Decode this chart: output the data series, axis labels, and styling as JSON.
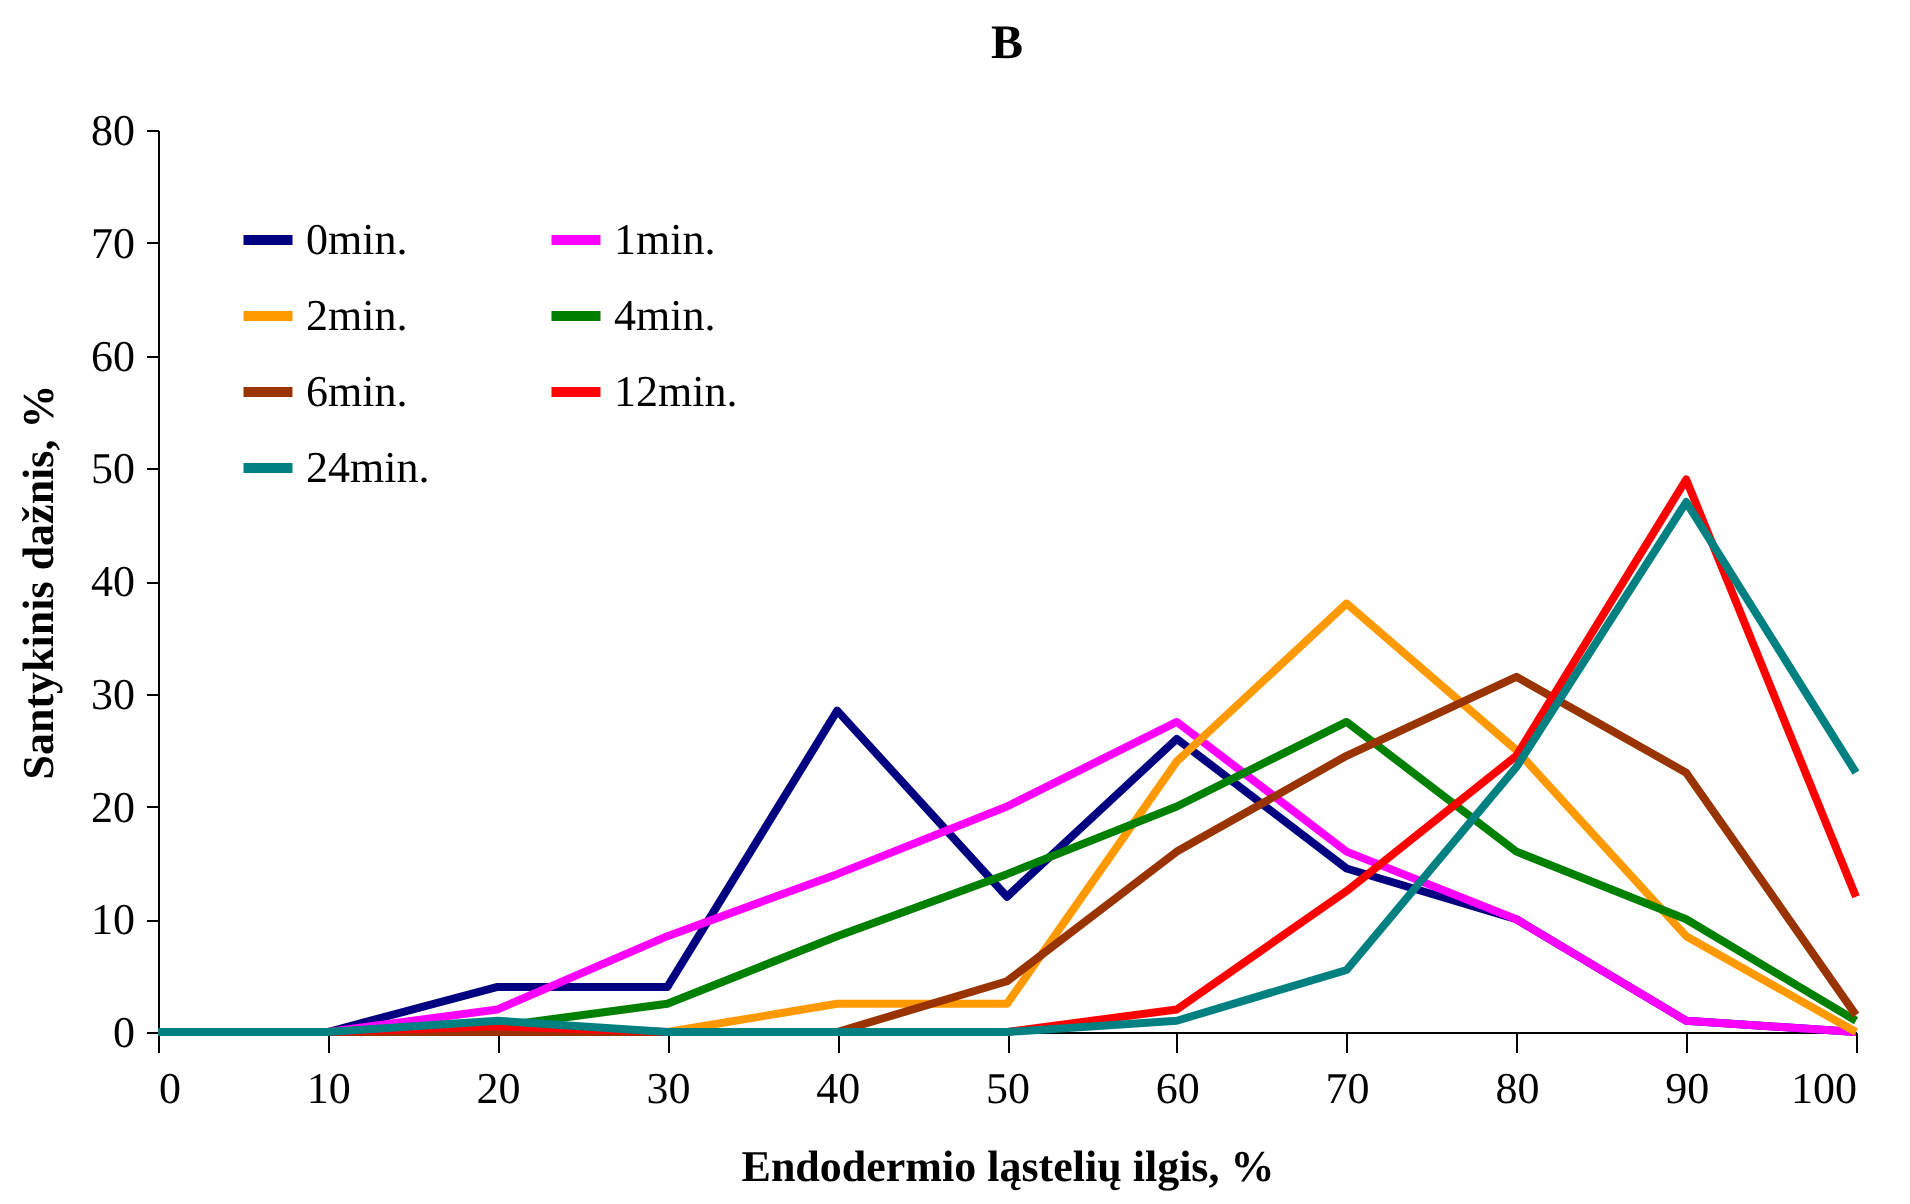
{
  "chart_data": {
    "type": "line",
    "title": "B",
    "xlabel": "Endodermio ląstelių ilgis, %",
    "ylabel": "Santykinis dažnis, %",
    "x": [
      0,
      10,
      20,
      30,
      40,
      50,
      60,
      70,
      80,
      90,
      100
    ],
    "xlim": [
      0,
      100
    ],
    "xticks": [
      0,
      10,
      20,
      30,
      40,
      50,
      60,
      70,
      80,
      90,
      100
    ],
    "ylim": [
      0,
      80
    ],
    "yticks": [
      0,
      10,
      20,
      30,
      40,
      50,
      60,
      70,
      80
    ],
    "grid": false,
    "legend": "top left",
    "marker": "none",
    "line_style": "solid",
    "series": [
      {
        "name": "0min.",
        "color": "#000080",
        "values": [
          0,
          0,
          4,
          4,
          28.5,
          12,
          26,
          14.5,
          10,
          1,
          0
        ]
      },
      {
        "name": "1min.",
        "color": "#ff00ff",
        "values": [
          0,
          0,
          2,
          8.5,
          14,
          20,
          27.5,
          16,
          10,
          1,
          0
        ]
      },
      {
        "name": "2min.",
        "color": "#ff9900",
        "values": [
          null,
          null,
          0,
          0,
          2.5,
          2.5,
          24,
          38,
          25,
          8.5,
          0
        ]
      },
      {
        "name": "4min.",
        "color": "#008000",
        "values": [
          0,
          0,
          0.5,
          2.5,
          8.5,
          14,
          20,
          27.5,
          16,
          10,
          1
        ]
      },
      {
        "name": "6min.",
        "color": "#993300",
        "values": [
          0,
          0,
          0,
          0,
          0,
          4.5,
          16,
          24.5,
          31.5,
          23,
          1.5
        ]
      },
      {
        "name": "12min.",
        "color": "#ff0000",
        "values": [
          0,
          0,
          0.5,
          0,
          0,
          0,
          2,
          12.5,
          24.5,
          49,
          12
        ]
      },
      {
        "name": "24min.",
        "color": "#008080",
        "values": [
          0,
          0,
          1,
          0,
          0,
          0,
          1,
          5.5,
          23.5,
          47,
          23
        ]
      }
    ]
  }
}
